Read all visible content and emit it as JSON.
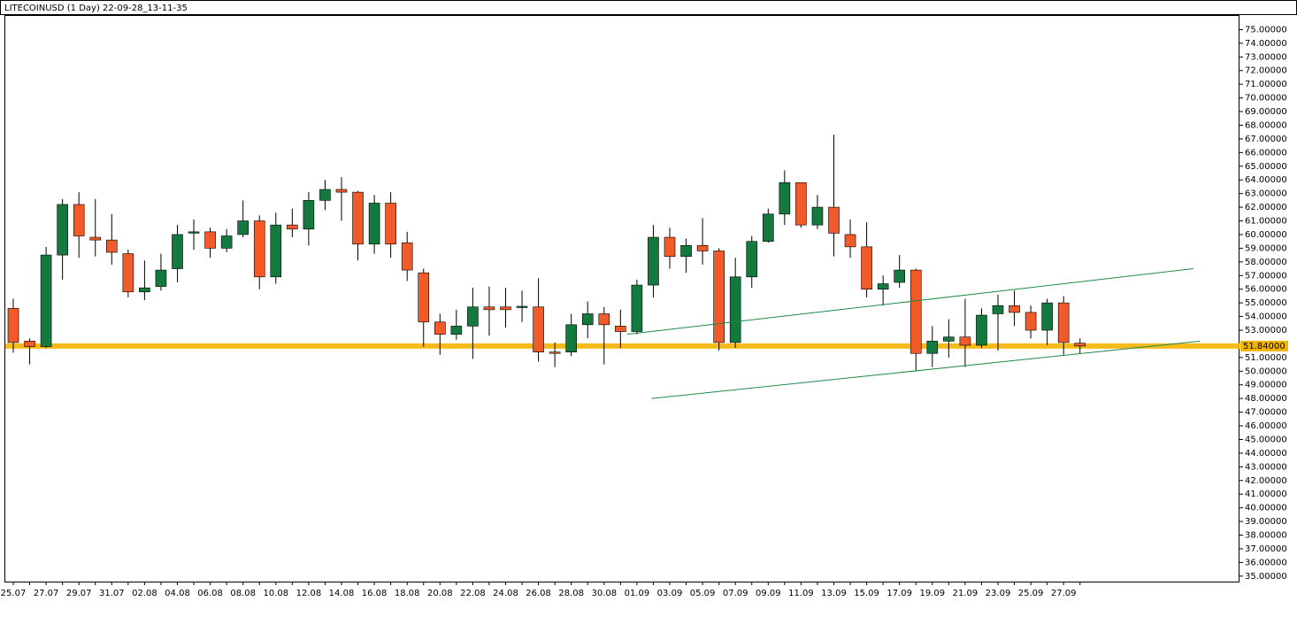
{
  "chart_data": {
    "type": "candlestick",
    "title": "LITECOINUSD (1 Day) 22-09-28_13-11-35",
    "categories": [
      "25.07",
      null,
      "27.07",
      null,
      "29.07",
      null,
      "31.07",
      null,
      "02.08",
      null,
      "04.08",
      null,
      "06.08",
      null,
      "08.08",
      null,
      "10.08",
      null,
      "12.08",
      null,
      "14.08",
      null,
      "16.08",
      null,
      "18.08",
      null,
      "20.08",
      null,
      "22.08",
      null,
      "24.08",
      null,
      "26.08",
      null,
      "28.08",
      null,
      "30.08",
      null,
      "01.09",
      null,
      "03.09",
      null,
      "05.09",
      null,
      "07.09",
      null,
      "09.09",
      null,
      "11.09",
      null,
      "13.09",
      null,
      "15.09",
      null,
      "17.09",
      null,
      "19.09",
      null,
      "21.09",
      null,
      "23.09",
      null,
      "25.09",
      null,
      "27.09",
      null
    ],
    "open": [
      54.6,
      52.2,
      51.8,
      58.5,
      62.2,
      59.8,
      59.6,
      58.6,
      55.8,
      56.2,
      57.5,
      60.15,
      60.2,
      59.0,
      60.0,
      61.0,
      56.9,
      60.7,
      60.4,
      62.5,
      63.3,
      63.1,
      59.3,
      62.3,
      59.4,
      57.2,
      53.6,
      52.7,
      53.3,
      54.7,
      54.7,
      54.7,
      54.7,
      51.4,
      51.4,
      53.4,
      54.2,
      53.3,
      52.9,
      56.3,
      59.8,
      58.4,
      59.2,
      58.8,
      52.1,
      56.9,
      59.5,
      61.5,
      63.8,
      60.7,
      62.0,
      60.0,
      59.1,
      56.0,
      56.5,
      57.4,
      51.3,
      52.2,
      52.5,
      51.9,
      54.2,
      54.8,
      54.3,
      53.0,
      55.0,
      52.05
    ],
    "high": [
      55.3,
      52.4,
      59.1,
      62.6,
      63.1,
      62.6,
      61.5,
      58.9,
      58.1,
      58.6,
      60.7,
      61.1,
      60.5,
      60.4,
      62.5,
      61.4,
      61.6,
      61.9,
      63.1,
      64.0,
      64.2,
      63.2,
      62.9,
      63.1,
      60.2,
      57.5,
      54.2,
      54.5,
      56.1,
      56.2,
      56.1,
      55.9,
      56.8,
      52.1,
      54.2,
      55.1,
      54.7,
      54.5,
      56.7,
      60.7,
      60.5,
      59.7,
      61.2,
      59.0,
      58.3,
      59.9,
      61.9,
      64.7,
      63.8,
      62.9,
      67.3,
      61.1,
      60.9,
      57.0,
      58.5,
      57.5,
      53.3,
      53.8,
      55.3,
      54.6,
      55.6,
      55.9,
      54.8,
      55.3,
      55.5,
      52.4
    ],
    "low": [
      51.35,
      50.5,
      51.7,
      56.7,
      58.3,
      58.4,
      57.8,
      55.4,
      55.2,
      55.9,
      56.5,
      58.9,
      58.3,
      58.7,
      59.8,
      56.0,
      56.4,
      59.8,
      59.2,
      61.8,
      61.0,
      58.1,
      58.6,
      58.3,
      56.6,
      51.8,
      51.2,
      52.3,
      50.9,
      52.6,
      53.2,
      53.6,
      50.7,
      50.3,
      51.1,
      52.4,
      50.5,
      51.7,
      52.7,
      55.4,
      57.5,
      57.2,
      57.8,
      51.5,
      51.7,
      56.1,
      59.4,
      60.7,
      60.5,
      60.4,
      58.4,
      58.3,
      55.4,
      54.8,
      56.1,
      50.0,
      50.3,
      51.0,
      50.3,
      51.7,
      51.5,
      53.3,
      52.4,
      51.9,
      51.2,
      51.3
    ],
    "close": [
      52.1,
      51.8,
      58.5,
      62.2,
      59.9,
      59.6,
      58.7,
      55.8,
      56.1,
      57.4,
      60.0,
      60.2,
      59.0,
      59.9,
      61.0,
      56.9,
      60.7,
      60.4,
      62.5,
      63.3,
      63.1,
      59.3,
      62.3,
      59.3,
      57.4,
      53.6,
      52.7,
      53.3,
      54.7,
      54.5,
      54.5,
      54.75,
      51.4,
      51.35,
      53.4,
      54.2,
      53.4,
      52.9,
      56.3,
      59.8,
      58.4,
      59.2,
      58.8,
      52.1,
      56.9,
      59.5,
      61.5,
      63.8,
      60.7,
      62.0,
      60.1,
      59.1,
      56.0,
      56.4,
      57.4,
      51.3,
      52.2,
      52.5,
      51.9,
      54.1,
      54.8,
      54.3,
      53.0,
      55.0,
      52.1,
      51.84
    ],
    "up_color": "#14793f",
    "down_color": "#f15a29",
    "wick_color": "#000000",
    "last_price": {
      "value": 51.84,
      "label": "51.84000"
    },
    "last_price_color": "#f5b400",
    "trendlines": [
      {
        "x": [
          37.4,
          71.9
        ],
        "y": [
          52.7,
          57.5
        ],
        "color": "#1f8a4a"
      },
      {
        "x": [
          38.9,
          72.3
        ],
        "y": [
          48.0,
          52.2
        ],
        "color": "#1f8a4a"
      }
    ],
    "ylim": [
      34.6,
      76.0
    ],
    "yticks": [
      {
        "value": 35,
        "label": "35.00000"
      },
      {
        "value": 36,
        "label": "36.00000"
      },
      {
        "value": 37,
        "label": "37.00000"
      },
      {
        "value": 38,
        "label": "38.00000"
      },
      {
        "value": 39,
        "label": "39.00000"
      },
      {
        "value": 40,
        "label": "40.00000"
      },
      {
        "value": 41,
        "label": "41.00000"
      },
      {
        "value": 42,
        "label": "42.00000"
      },
      {
        "value": 43,
        "label": "43.00000"
      },
      {
        "value": 44,
        "label": "44.00000"
      },
      {
        "value": 45,
        "label": "45.00000"
      },
      {
        "value": 46,
        "label": "46.00000"
      },
      {
        "value": 47,
        "label": "47.00000"
      },
      {
        "value": 48,
        "label": "48.00000"
      },
      {
        "value": 49,
        "label": "49.00000"
      },
      {
        "value": 50,
        "label": "50.00000"
      },
      {
        "value": 51,
        "label": "51.00000"
      },
      {
        "value": 53,
        "label": "53.00000"
      },
      {
        "value": 54,
        "label": "54.00000"
      },
      {
        "value": 55,
        "label": "55.00000"
      },
      {
        "value": 56,
        "label": "56.00000"
      },
      {
        "value": 57,
        "label": "57.00000"
      },
      {
        "value": 58,
        "label": "58.00000"
      },
      {
        "value": 59,
        "label": "59.00000"
      },
      {
        "value": 60,
        "label": "60.00000"
      },
      {
        "value": 61,
        "label": "61.00000"
      },
      {
        "value": 62,
        "label": "62.00000"
      },
      {
        "value": 63,
        "label": "63.00000"
      },
      {
        "value": 64,
        "label": "64.00000"
      },
      {
        "value": 65,
        "label": "65.00000"
      },
      {
        "value": 66,
        "label": "66.00000"
      },
      {
        "value": 67,
        "label": "67.00000"
      },
      {
        "value": 68,
        "label": "68.00000"
      },
      {
        "value": 69,
        "label": "69.00000"
      },
      {
        "value": 70,
        "label": "70.00000"
      },
      {
        "value": 71,
        "label": "71.00000"
      },
      {
        "value": 72,
        "label": "72.00000"
      },
      {
        "value": 73,
        "label": "73.00000"
      },
      {
        "value": 74,
        "label": "74.00000"
      },
      {
        "value": 75,
        "label": "75.00000"
      }
    ]
  }
}
